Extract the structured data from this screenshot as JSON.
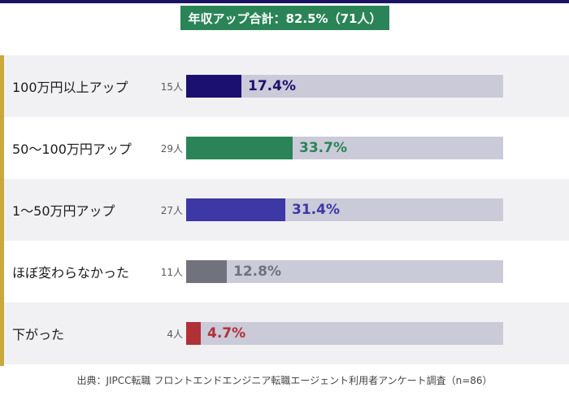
{
  "header": {
    "summary": "年収アップ合計：82.5%（71人）"
  },
  "chart_data": {
    "type": "bar",
    "orientation": "horizontal",
    "categories": [
      "100万円以上アップ",
      "50〜100万円アップ",
      "1〜50万円アップ",
      "ほぼ変わらなかった",
      "下がった"
    ],
    "values": [
      17.4,
      33.7,
      31.4,
      12.8,
      4.7
    ],
    "counts": [
      "15人",
      "29人",
      "27人",
      "11人",
      "4人"
    ],
    "value_labels": [
      "17.4%",
      "33.7%",
      "31.4%",
      "12.8%",
      "4.7%"
    ],
    "colors": [
      "#1b1070",
      "#2a8457",
      "#3e37a6",
      "#72727c",
      "#b03036"
    ],
    "xlim": [
      0,
      100
    ]
  },
  "footer": {
    "source": "出典：JIPCC転職 フロントエンドエンジニア転職エージェント利用者アンケート調査（n=86）"
  }
}
